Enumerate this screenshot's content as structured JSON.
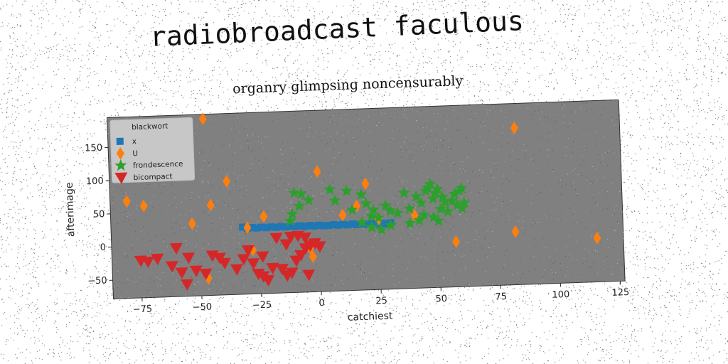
{
  "title": "radiobroadcast faculous",
  "chart_data": {
    "type": "scatter",
    "subtitle": "organry glimpsing noncensurably",
    "xlabel": "catchiest",
    "ylabel": "afterimage",
    "xlim": [
      -87,
      127
    ],
    "ylim": [
      -78,
      195
    ],
    "xticks": [
      -75,
      -50,
      -25,
      0,
      25,
      50,
      75,
      100,
      125
    ],
    "yticks": [
      -50,
      0,
      50,
      100,
      150
    ],
    "grid": false,
    "background": "#808080",
    "legend": {
      "title": "blackwort",
      "position": "top-left"
    },
    "series": [
      {
        "name": "x",
        "marker": "square",
        "color": "#1f77b4",
        "points": [
          [
            -32,
            23
          ],
          [
            -30,
            21
          ],
          [
            -28,
            22
          ],
          [
            -26,
            21
          ],
          [
            -24,
            22
          ],
          [
            -22,
            21
          ],
          [
            -20,
            22
          ],
          [
            -18,
            21
          ],
          [
            -16,
            22
          ],
          [
            -14,
            21
          ],
          [
            -12,
            22
          ],
          [
            -10,
            21
          ],
          [
            -8,
            22
          ],
          [
            -6,
            21
          ],
          [
            -4,
            22
          ],
          [
            -2,
            21
          ],
          [
            0,
            22
          ],
          [
            2,
            21
          ],
          [
            4,
            21
          ],
          [
            6,
            22
          ],
          [
            8,
            21
          ],
          [
            10,
            22
          ],
          [
            12,
            21
          ],
          [
            14,
            22
          ],
          [
            16,
            21
          ],
          [
            18,
            22
          ],
          [
            20,
            21
          ],
          [
            22,
            22
          ],
          [
            24,
            21
          ],
          [
            26,
            22
          ],
          [
            28,
            21
          ],
          [
            30,
            22
          ]
        ]
      },
      {
        "name": "U",
        "marker": "diamond",
        "color": "#ff7f0e",
        "points": [
          [
            -47,
            188
          ],
          [
            -80,
            68
          ],
          [
            -73,
            60
          ],
          [
            -53,
            31
          ],
          [
            -45,
            58
          ],
          [
            -38,
            93
          ],
          [
            -23,
            38
          ],
          [
            -30,
            22
          ],
          [
            -28,
            -12
          ],
          [
            -47,
            -52
          ],
          [
            -3,
            -25
          ],
          [
            -4,
            -12
          ],
          [
            0,
            103
          ],
          [
            20,
            82
          ],
          [
            16,
            49
          ],
          [
            10,
            36
          ],
          [
            25,
            28
          ],
          [
            40,
            32
          ],
          [
            57,
            -10
          ],
          [
            82,
            2
          ],
          [
            83,
            158
          ],
          [
            116,
            -12
          ]
        ]
      },
      {
        "name": "frondescence",
        "marker": "star",
        "color": "#2ca02c",
        "points": [
          [
            -10,
            72
          ],
          [
            -7,
            70
          ],
          [
            -11,
            40
          ],
          [
            -8,
            52
          ],
          [
            -12,
            30
          ],
          [
            -4,
            60
          ],
          [
            5,
            75
          ],
          [
            7,
            58
          ],
          [
            12,
            72
          ],
          [
            14,
            43
          ],
          [
            18,
            66
          ],
          [
            20,
            52
          ],
          [
            22,
            33
          ],
          [
            23,
            42
          ],
          [
            25,
            30
          ],
          [
            18,
            24
          ],
          [
            28,
            48
          ],
          [
            30,
            40
          ],
          [
            33,
            36
          ],
          [
            36,
            66
          ],
          [
            38,
            42
          ],
          [
            41,
            60
          ],
          [
            43,
            50
          ],
          [
            45,
            68
          ],
          [
            46,
            72
          ],
          [
            47,
            78
          ],
          [
            48,
            56
          ],
          [
            49,
            64
          ],
          [
            50,
            70
          ],
          [
            51,
            40
          ],
          [
            52,
            58
          ],
          [
            53,
            50
          ],
          [
            54,
            36
          ],
          [
            56,
            52
          ],
          [
            57,
            62
          ],
          [
            58,
            45
          ],
          [
            59,
            66
          ],
          [
            60,
            70
          ],
          [
            61,
            48
          ],
          [
            60,
            40
          ],
          [
            44,
            32
          ],
          [
            48,
            28
          ],
          [
            42,
            24
          ],
          [
            50,
            22
          ],
          [
            30,
            18
          ],
          [
            38,
            20
          ],
          [
            22,
            16
          ],
          [
            26,
            12
          ]
        ]
      },
      {
        "name": "bicompact",
        "marker": "triangle-down",
        "color": "#d62728",
        "points": [
          [
            -75,
            -22
          ],
          [
            -72,
            -24
          ],
          [
            -68,
            -20
          ],
          [
            -60,
            -5
          ],
          [
            -62,
            -32
          ],
          [
            -55,
            -20
          ],
          [
            -52,
            -40
          ],
          [
            -58,
            -42
          ],
          [
            -48,
            -45
          ],
          [
            -45,
            -18
          ],
          [
            -42,
            -22
          ],
          [
            -40,
            -30
          ],
          [
            -56,
            -60
          ],
          [
            -35,
            -40
          ],
          [
            -32,
            -25
          ],
          [
            -30,
            -12
          ],
          [
            -28,
            -32
          ],
          [
            -26,
            -48
          ],
          [
            -24,
            -52
          ],
          [
            -22,
            -58
          ],
          [
            -20,
            -40
          ],
          [
            -16,
            -42
          ],
          [
            -14,
            -52
          ],
          [
            -12,
            -48
          ],
          [
            -10,
            -30
          ],
          [
            -8,
            -22
          ],
          [
            -6,
            -12
          ],
          [
            -4,
            -8
          ],
          [
            -2,
            -5
          ],
          [
            0,
            -10
          ],
          [
            -18,
            5
          ],
          [
            -12,
            6
          ],
          [
            -9,
            7
          ],
          [
            -6,
            4
          ],
          [
            -14,
            -5
          ],
          [
            -24,
            -22
          ],
          [
            -5,
            -52
          ]
        ]
      }
    ]
  }
}
